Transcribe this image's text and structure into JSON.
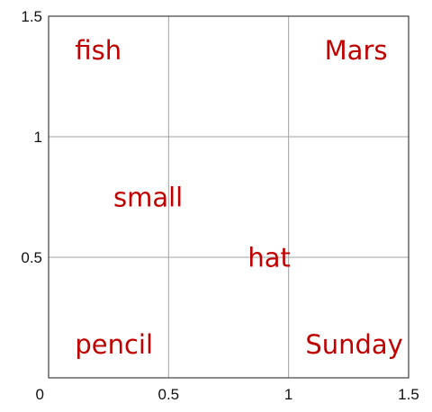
{
  "chart_data": {
    "type": "scatter",
    "title": "",
    "xlabel": "",
    "ylabel": "",
    "xlim": [
      0,
      1.5
    ],
    "ylim": [
      0,
      1.5
    ],
    "grid": true,
    "x_ticks": [
      {
        "value": 0,
        "label": "0"
      },
      {
        "value": 0.5,
        "label": "0.5"
      },
      {
        "value": 1,
        "label": "1"
      },
      {
        "value": 1.5,
        "label": "1.5"
      }
    ],
    "y_ticks": [
      {
        "value": 0.5,
        "label": "0.5"
      },
      {
        "value": 1,
        "label": "1"
      },
      {
        "value": 1.5,
        "label": "1.5"
      }
    ],
    "points": [
      {
        "label": "fish",
        "x": 0.11,
        "y": 1.35
      },
      {
        "label": "Mars",
        "x": 1.15,
        "y": 1.35
      },
      {
        "label": "small",
        "x": 0.27,
        "y": 0.74
      },
      {
        "label": "hat",
        "x": 0.83,
        "y": 0.49
      },
      {
        "label": "pencil",
        "x": 0.11,
        "y": 0.13
      },
      {
        "label": "Sunday",
        "x": 1.07,
        "y": 0.13
      }
    ],
    "label_color": "#c00000",
    "grid_color": "#a0a0a0"
  }
}
